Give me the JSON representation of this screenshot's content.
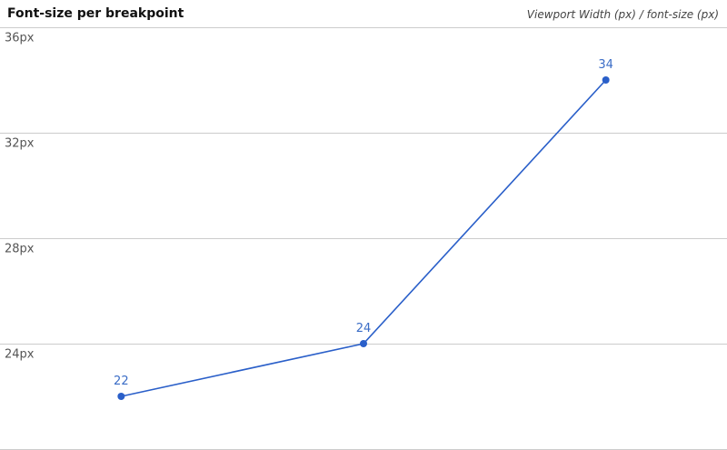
{
  "chart_data": {
    "type": "line",
    "title": "Font-size per breakpoint",
    "axis_caption": "Viewport Width (px) / font-size (px)",
    "xlabel": "",
    "ylabel": "",
    "ylim": [
      20,
      36
    ],
    "y_ticks": [
      {
        "value": 36,
        "label": "36px"
      },
      {
        "value": 32,
        "label": "32px"
      },
      {
        "value": 28,
        "label": "28px"
      },
      {
        "value": 24,
        "label": "24px"
      },
      {
        "value": 20,
        "label": ""
      }
    ],
    "grid": true,
    "series": [
      {
        "values": [
          22,
          24,
          34
        ],
        "labels": [
          "22",
          "24",
          "34"
        ],
        "color": "#2a5fc9"
      }
    ],
    "label_color": "#3a6cc6"
  }
}
